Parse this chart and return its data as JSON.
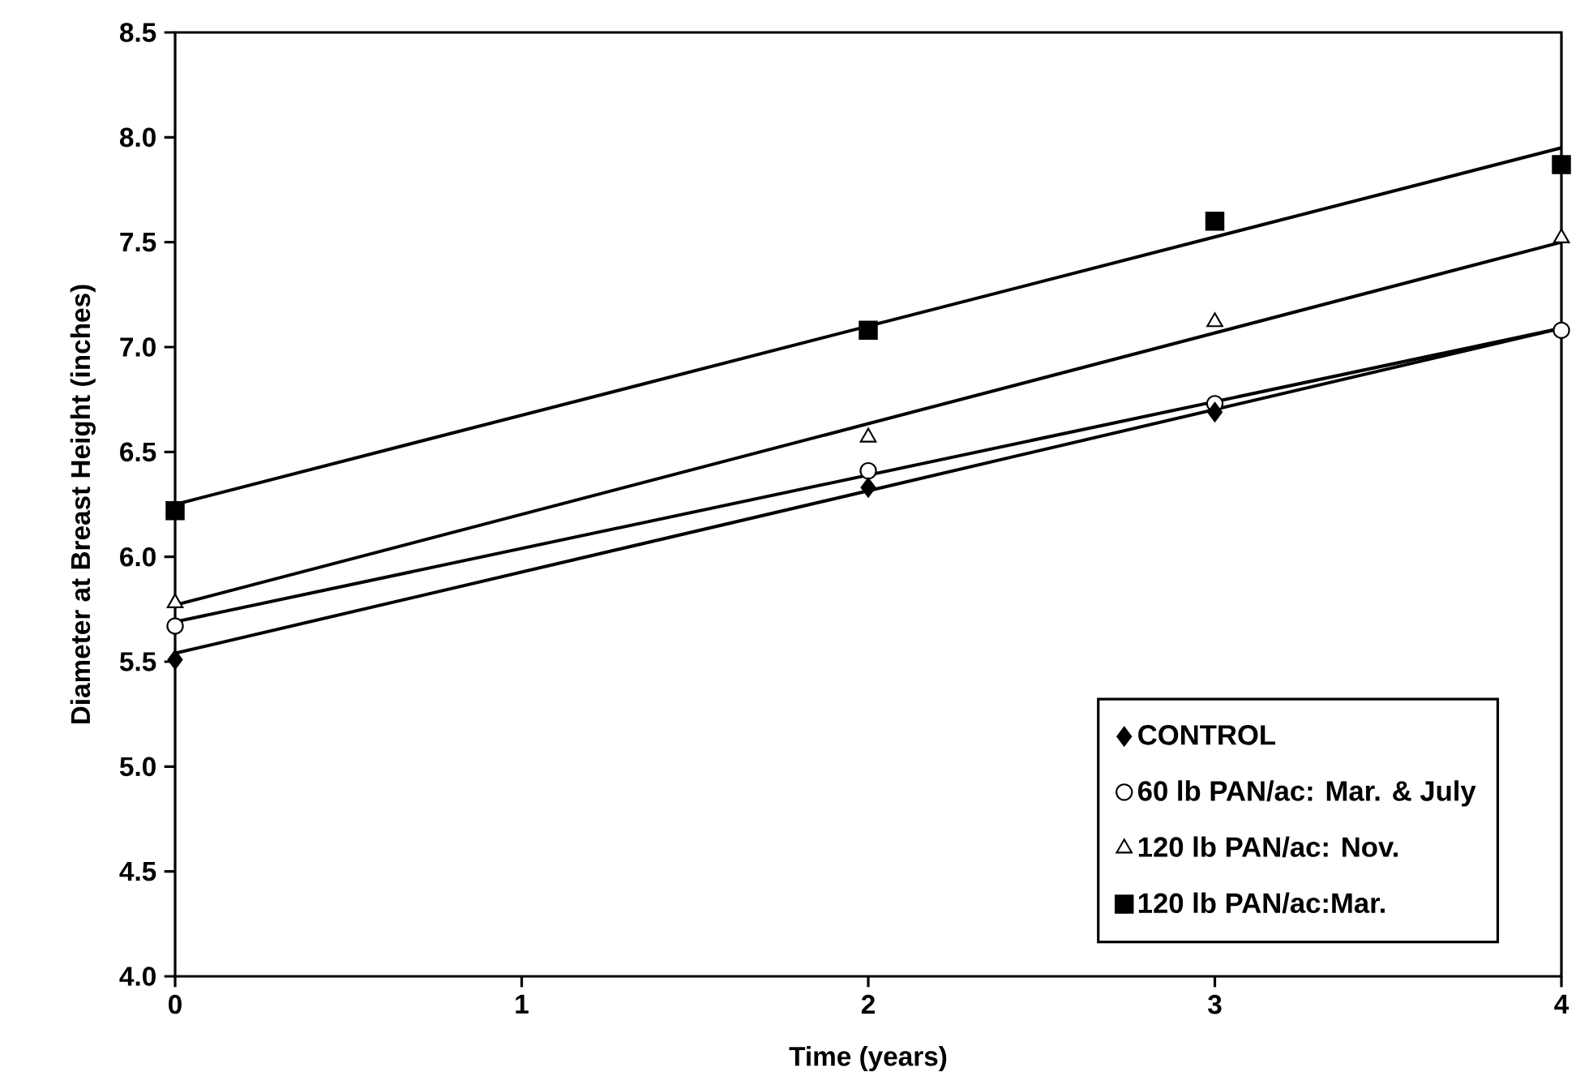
{
  "chart_data": {
    "type": "scatter",
    "xlabel": "Time (years)",
    "ylabel": "Diameter at Breast Height (inches)",
    "xlim": [
      0,
      4
    ],
    "xticks": [
      0,
      1,
      2,
      3,
      4
    ],
    "ylim": [
      4.0,
      8.5
    ],
    "yticks": [
      {
        "value": 4.0,
        "label": "4.0"
      },
      {
        "value": 4.5,
        "label": "4.5"
      },
      {
        "value": 5.0,
        "label": "5.0"
      },
      {
        "value": 5.5,
        "label": "5.5"
      },
      {
        "value": 6.0,
        "label": "6.0"
      },
      {
        "value": 6.5,
        "label": "6.5"
      },
      {
        "value": 7.0,
        "label": "7.0"
      },
      {
        "value": 7.5,
        "label": "7.5"
      },
      {
        "value": 8.0,
        "label": "8.0"
      },
      {
        "value": 8.5,
        "label": "8.5"
      }
    ],
    "grid": false,
    "legend": "bottom right",
    "series": [
      {
        "name": "CONTROL",
        "marker": "diamond",
        "color": "#000000",
        "x": [
          0,
          2,
          3
        ],
        "values": [
          5.51,
          6.33,
          6.69
        ]
      },
      {
        "name": "60 lb PAN/ac: Mar. & July",
        "marker": "circle",
        "color": "#ffffff",
        "x": [
          0,
          2,
          3,
          4
        ],
        "values": [
          5.67,
          6.41,
          6.73,
          7.08
        ]
      },
      {
        "name": "120 lb PAN/ac: Nov.",
        "marker": "triangle",
        "color": "#ffffff",
        "x": [
          0,
          2,
          3,
          4
        ],
        "values": [
          5.78,
          6.57,
          7.12,
          7.52
        ]
      },
      {
        "name": "120 lb PAN/ac:Mar.",
        "marker": "square",
        "color": "#000000",
        "x": [
          0,
          2,
          3,
          4
        ],
        "values": [
          6.22,
          7.08,
          7.6,
          7.87
        ]
      },
      {
        "type": "line",
        "color": "#000000",
        "x": [
          0,
          4
        ],
        "values": [
          5.54,
          7.09
        ]
      },
      {
        "type": "line",
        "color": "#000000",
        "x": [
          0,
          4
        ],
        "values": [
          5.69,
          7.09
        ]
      },
      {
        "type": "line",
        "color": "#000000",
        "x": [
          0,
          4
        ],
        "values": [
          5.77,
          7.5
        ]
      },
      {
        "type": "line",
        "color": "#000000",
        "x": [
          0,
          4
        ],
        "values": [
          6.25,
          7.95
        ]
      }
    ]
  }
}
